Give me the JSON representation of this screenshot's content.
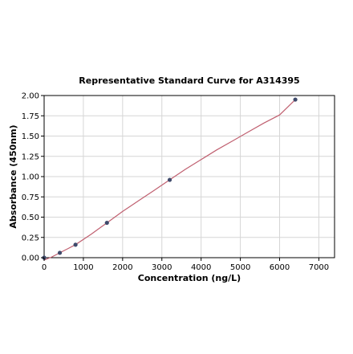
{
  "chart_data": {
    "type": "scatter",
    "title": "Representative Standard Curve for A314395",
    "xlabel": "Concentration (ng/L)",
    "ylabel": "Absorbance (450nm)",
    "xlim": [
      0,
      7400
    ],
    "ylim": [
      0,
      2.0
    ],
    "xticks": [
      0,
      1000,
      2000,
      3000,
      4000,
      5000,
      6000,
      7000
    ],
    "xtick_labels": [
      "0",
      "1000",
      "2000",
      "3000",
      "4000",
      "5000",
      "6000",
      "7000"
    ],
    "yticks": [
      0,
      0.25,
      0.5,
      0.75,
      1.0,
      1.25,
      1.5,
      1.75,
      2.0
    ],
    "ytick_labels": [
      "0.00",
      "0.25",
      "0.50",
      "0.75",
      "1.00",
      "1.25",
      "1.50",
      "1.75",
      "2.00"
    ],
    "grid": true,
    "series": [
      {
        "x": [
          0,
          400,
          800,
          1600,
          3200,
          6400
        ],
        "y": [
          0.0,
          0.06,
          0.16,
          0.43,
          0.96,
          1.95
        ],
        "point_color": "#3f4a6b"
      }
    ],
    "fit_curve": {
      "color": "#c06070",
      "x": [
        0,
        200,
        400,
        600,
        800,
        1200,
        1600,
        2000,
        2400,
        2800,
        3200,
        3600,
        4000,
        4400,
        4800,
        5200,
        5600,
        6000,
        6400
      ],
      "y": [
        -0.04,
        0.01,
        0.06,
        0.11,
        0.16,
        0.29,
        0.43,
        0.57,
        0.7,
        0.83,
        0.96,
        1.09,
        1.21,
        1.33,
        1.44,
        1.55,
        1.66,
        1.76,
        1.95
      ]
    }
  }
}
